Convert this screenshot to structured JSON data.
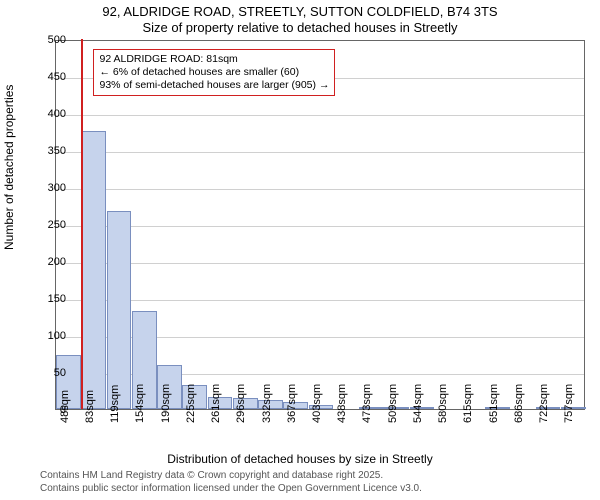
{
  "title_line1": "92, ALDRIDGE ROAD, STREETLY, SUTTON COLDFIELD, B74 3TS",
  "title_line2": "Size of property relative to detached houses in Streetly",
  "yaxis_label": "Number of detached properties",
  "xaxis_label": "Distribution of detached houses by size in Streetly",
  "footer_line1": "Contains HM Land Registry data © Crown copyright and database right 2025.",
  "footer_line2": "Contains public sector information licensed under the Open Government Licence v3.0.",
  "chart": {
    "type": "histogram",
    "y": {
      "min": 0,
      "max": 500,
      "step": 50
    },
    "bar_fill": "#c6d3ec",
    "bar_stroke": "#7a8fbf",
    "grid_color": "#d0d0d0",
    "background": "#ffffff",
    "marker_color": "#d02020",
    "bars": [
      {
        "label": "48sqm",
        "value": 73
      },
      {
        "label": "83sqm",
        "value": 376
      },
      {
        "label": "119sqm",
        "value": 268
      },
      {
        "label": "154sqm",
        "value": 133
      },
      {
        "label": "190sqm",
        "value": 60
      },
      {
        "label": "225sqm",
        "value": 32
      },
      {
        "label": "261sqm",
        "value": 16
      },
      {
        "label": "296sqm",
        "value": 15
      },
      {
        "label": "332sqm",
        "value": 12
      },
      {
        "label": "367sqm",
        "value": 9
      },
      {
        "label": "403sqm",
        "value": 6
      },
      {
        "label": "438sqm",
        "value": 0
      },
      {
        "label": "473sqm",
        "value": 2
      },
      {
        "label": "509sqm",
        "value": 1
      },
      {
        "label": "544sqm",
        "value": 1
      },
      {
        "label": "580sqm",
        "value": 0
      },
      {
        "label": "615sqm",
        "value": 0
      },
      {
        "label": "651sqm",
        "value": 1
      },
      {
        "label": "686sqm",
        "value": 0
      },
      {
        "label": "722sqm",
        "value": 1
      },
      {
        "label": "757sqm",
        "value": 1
      }
    ],
    "marker_bin_index": 1,
    "marker_height_value": 500,
    "annotation": {
      "line1": "92 ALDRIDGE ROAD: 81sqm",
      "line2": "← 6% of detached houses are smaller (60)",
      "line3": "93% of semi-detached houses are larger (905) →"
    }
  }
}
